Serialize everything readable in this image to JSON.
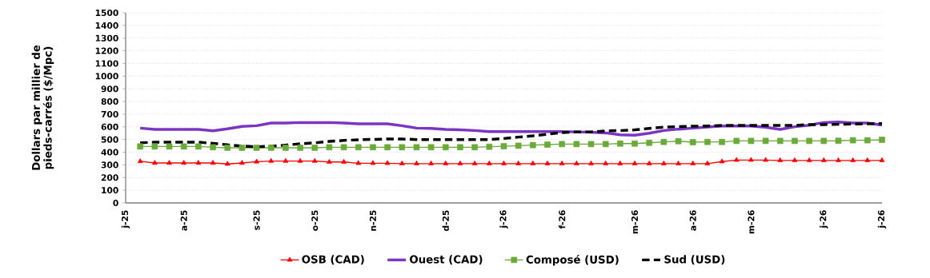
{
  "chart_data": {
    "type": "line",
    "ylabel": "Dollars par millier de pieds-carrés ($/Mpc)",
    "categories": [
      "j-25",
      null,
      null,
      null,
      "a-25",
      null,
      null,
      null,
      null,
      "s-25",
      null,
      null,
      null,
      "o-25",
      null,
      null,
      null,
      "n-25",
      null,
      null,
      null,
      null,
      "d-25",
      null,
      null,
      null,
      "j-26",
      null,
      null,
      null,
      "f-26",
      null,
      null,
      null,
      null,
      "m-26",
      null,
      null,
      null,
      "a-26",
      null,
      null,
      null,
      "m-26",
      null,
      null,
      null,
      null,
      "j-26",
      null,
      null,
      null,
      "j-26"
    ],
    "ylim": [
      0,
      1500
    ],
    "yticks": [
      0,
      100,
      200,
      300,
      400,
      500,
      600,
      700,
      800,
      900,
      1000,
      1100,
      1200,
      1300,
      1400,
      1500
    ],
    "grid": "y",
    "legend": "bottom",
    "series": [
      {
        "name": "OSB (CAD)",
        "color": "#ff0000",
        "marker": "triangle",
        "line_style": "solid",
        "values": [
          null,
          328,
          315,
          315,
          315,
          315,
          315,
          307,
          315,
          325,
          330,
          330,
          330,
          330,
          323,
          323,
          313,
          313,
          313,
          310,
          310,
          310,
          310,
          310,
          310,
          310,
          310,
          310,
          310,
          310,
          310,
          310,
          310,
          310,
          310,
          310,
          310,
          310,
          310,
          310,
          310,
          326,
          338,
          338,
          338,
          335,
          335,
          335,
          335,
          335,
          335,
          335,
          335
        ]
      },
      {
        "name": "Ouest (CAD)",
        "color": "#7b35c1",
        "marker": "none",
        "line_style": "solid",
        "values": [
          null,
          590,
          580,
          580,
          580,
          580,
          569,
          584,
          603,
          609,
          630,
          630,
          634,
          634,
          634,
          630,
          624,
          624,
          624,
          609,
          590,
          587,
          580,
          576,
          571,
          563,
          563,
          563,
          563,
          563,
          563,
          560,
          558,
          552,
          537,
          534,
          550,
          571,
          582,
          590,
          599,
          607,
          607,
          607,
          597,
          580,
          601,
          613,
          634,
          638,
          630,
          630,
          615
        ]
      },
      {
        "name": "Composé (USD)",
        "color": "#6aaa3a",
        "marker": "square",
        "line_style": "solid",
        "values": [
          null,
          445,
          445,
          445,
          445,
          445,
          439,
          435,
          435,
          435,
          435,
          435,
          435,
          435,
          439,
          439,
          439,
          439,
          439,
          439,
          439,
          439,
          439,
          439,
          439,
          443,
          447,
          451,
          456,
          460,
          464,
          464,
          464,
          464,
          468,
          468,
          474,
          481,
          487,
          479,
          481,
          481,
          489,
          489,
          489,
          489,
          489,
          489,
          489,
          490,
          494,
          494,
          498
        ]
      },
      {
        "name": "Sud (USD)",
        "color": "#000000",
        "marker": "none",
        "line_style": "dashed",
        "values": [
          null,
          474,
          479,
          479,
          479,
          479,
          470,
          458,
          449,
          443,
          447,
          456,
          466,
          474,
          485,
          493,
          498,
          501,
          504,
          504,
          500,
          500,
          500,
          500,
          500,
          500,
          508,
          519,
          529,
          542,
          555,
          560,
          560,
          567,
          571,
          576,
          588,
          597,
          601,
          605,
          607,
          611,
          611,
          611,
          611,
          611,
          611,
          618,
          618,
          620,
          622,
          624,
          626
        ]
      }
    ]
  }
}
